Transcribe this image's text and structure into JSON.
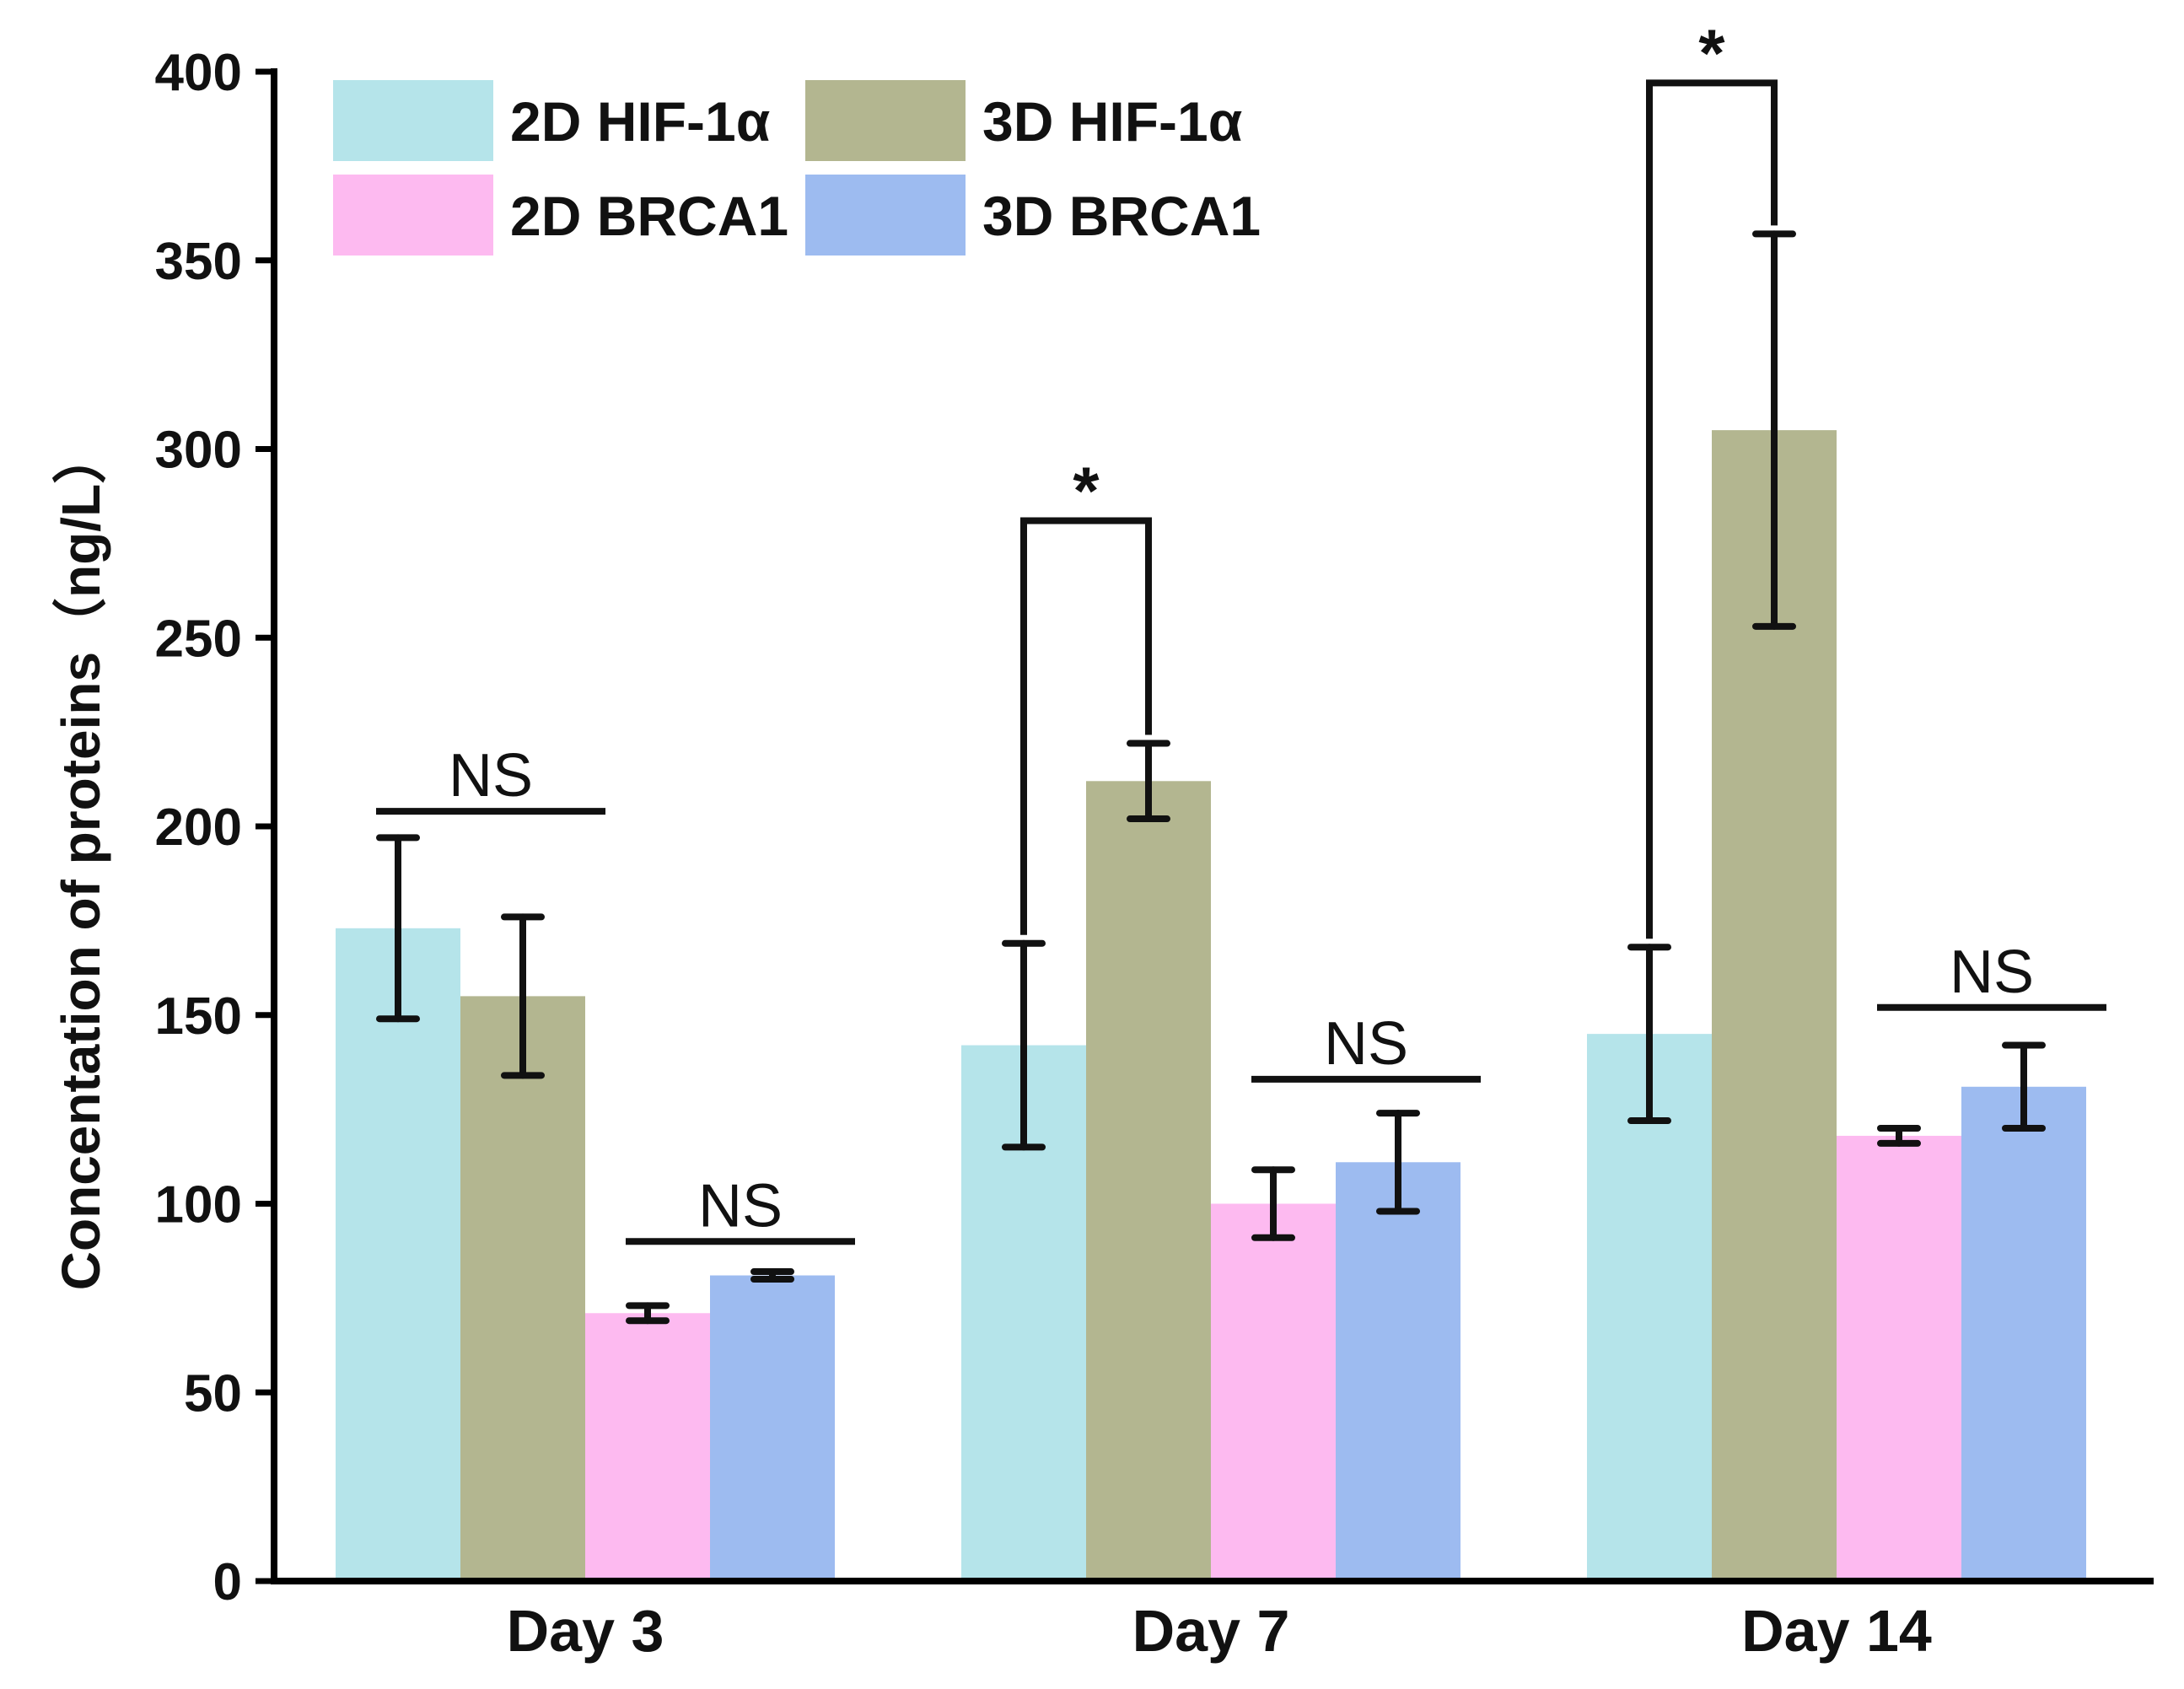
{
  "chart_data": {
    "type": "bar",
    "title": "",
    "xlabel": "",
    "ylabel": "Concentation of proteins（ng/L）",
    "ylim": [
      0,
      400
    ],
    "yticks": [
      "0",
      "50",
      "100",
      "150",
      "200",
      "250",
      "300",
      "350",
      "400"
    ],
    "grid": false,
    "legend_position": "top-left",
    "categories": [
      "Day 3",
      "Day 7",
      "Day 14"
    ],
    "series": [
      {
        "name": "2D HIF-1α",
        "color": "#b5e4ea",
        "values": [
          173,
          142,
          145
        ],
        "errors": [
          24,
          27,
          23
        ]
      },
      {
        "name": "3D HIF-1α",
        "color": "#b3b690",
        "values": [
          155,
          212,
          305
        ],
        "errors": [
          21,
          10,
          52
        ]
      },
      {
        "name": "2D BRCA1",
        "color": "#fdbaf0",
        "values": [
          71,
          100,
          118
        ],
        "errors": [
          2,
          9,
          2
        ]
      },
      {
        "name": "3D BRCA1",
        "color": "#9dbbf0",
        "values": [
          81,
          111,
          131
        ],
        "errors": [
          1,
          13,
          11
        ]
      }
    ],
    "annotations": [
      {
        "label": "NS",
        "category": 0,
        "from_series": 0,
        "to_series": 1,
        "type": "line",
        "y": 204
      },
      {
        "label": "NS",
        "category": 0,
        "from_series": 2,
        "to_series": 3,
        "type": "line",
        "y": 90
      },
      {
        "label": "*",
        "category": 1,
        "from_series": 0,
        "to_series": 1,
        "type": "bracket",
        "y": 281
      },
      {
        "label": "NS",
        "category": 1,
        "from_series": 2,
        "to_series": 3,
        "type": "line",
        "y": 133
      },
      {
        "label": "*",
        "category": 2,
        "from_series": 0,
        "to_series": 1,
        "type": "bracket",
        "y": 397
      },
      {
        "label": "NS",
        "category": 2,
        "from_series": 2,
        "to_series": 3,
        "type": "line",
        "y": 152
      }
    ]
  }
}
